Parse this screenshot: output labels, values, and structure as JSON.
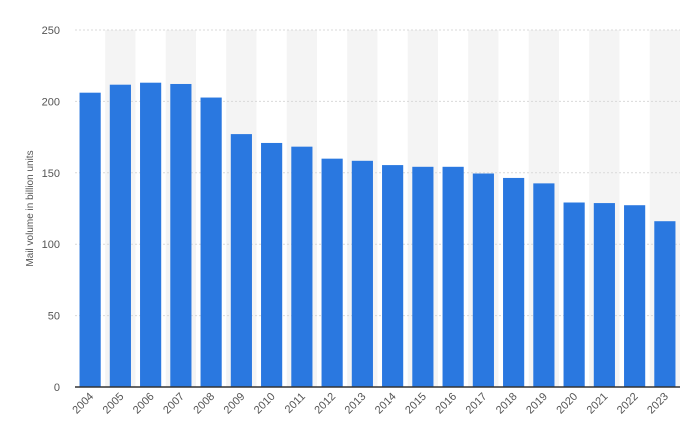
{
  "chart_data": {
    "type": "bar",
    "title": "",
    "xlabel": "",
    "ylabel": "Mail volume in billion units",
    "ylim": [
      0,
      250
    ],
    "yticks": [
      0,
      50,
      100,
      150,
      200,
      250
    ],
    "grid": true,
    "legend": "none",
    "categories": [
      "2004",
      "2005",
      "2006",
      "2007",
      "2008",
      "2009",
      "2010",
      "2011",
      "2012",
      "2013",
      "2014",
      "2015",
      "2016",
      "2017",
      "2018",
      "2019",
      "2020",
      "2021",
      "2022",
      "2023"
    ],
    "series": [
      {
        "values": [
          206.1,
          211.7,
          213.1,
          212.2,
          202.7,
          177.1,
          170.9,
          168.3,
          159.9,
          158.4,
          155.4,
          154.2,
          154.2,
          149.5,
          146.4,
          142.6,
          129.2,
          128.8,
          127.3,
          116.1
        ]
      }
    ],
    "colors": {
      "bar": "#2a78e0",
      "band": "#f4f4f4",
      "grid": "#d9d9d9",
      "axis": "#333333",
      "text": "#555555"
    }
  }
}
